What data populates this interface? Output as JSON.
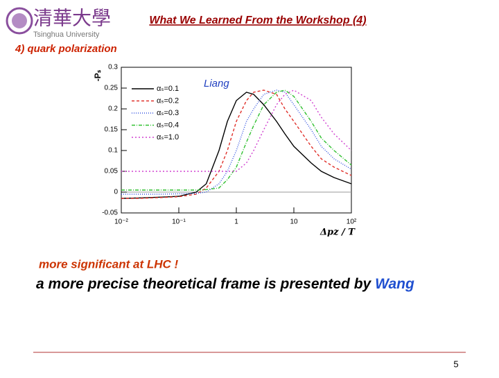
{
  "header": {
    "logo_text": "清華大學",
    "logo_subtext": "Tsinghua University",
    "title": "What We Learned From the Workshop (4)",
    "subtitle": "4) quark polarization"
  },
  "chart_data": {
    "type": "line",
    "annotation": "Liang",
    "y_label": "-Pₛ",
    "x_label": "Δpz / T",
    "x_scale": "log",
    "x": [
      0.01,
      0.02,
      0.05,
      0.1,
      0.2,
      0.3,
      0.5,
      0.7,
      1,
      1.5,
      2,
      3,
      5,
      7,
      10,
      20,
      30,
      50,
      100
    ],
    "series": [
      {
        "name": "αₛ=0.1",
        "color": "#000000",
        "dash": "none",
        "values": [
          -0.015,
          -0.014,
          -0.012,
          -0.01,
          0.0,
          0.02,
          0.1,
          0.17,
          0.22,
          0.24,
          0.235,
          0.21,
          0.17,
          0.14,
          0.11,
          0.07,
          0.05,
          0.035,
          0.02
        ]
      },
      {
        "name": "αₛ=0.2",
        "color": "#e0302a",
        "dash": "4,3",
        "values": [
          -0.015,
          -0.015,
          -0.013,
          -0.011,
          -0.005,
          0.01,
          0.05,
          0.1,
          0.17,
          0.22,
          0.24,
          0.245,
          0.235,
          0.2,
          0.17,
          0.11,
          0.08,
          0.06,
          0.04
        ]
      },
      {
        "name": "αₛ=0.3",
        "color": "#3050e0",
        "dash": "1,2",
        "values": [
          -0.005,
          -0.005,
          -0.005,
          -0.004,
          -0.003,
          0.0,
          0.02,
          0.05,
          0.1,
          0.17,
          0.2,
          0.235,
          0.245,
          0.24,
          0.21,
          0.15,
          0.11,
          0.08,
          0.055
        ]
      },
      {
        "name": "αₛ=0.4",
        "color": "#30c030",
        "dash": "5,2,1,2",
        "values": [
          0.005,
          0.005,
          0.005,
          0.005,
          0.005,
          0.006,
          0.01,
          0.03,
          0.06,
          0.12,
          0.16,
          0.21,
          0.24,
          0.245,
          0.23,
          0.17,
          0.13,
          0.1,
          0.065
        ]
      },
      {
        "name": "αₛ=1.0",
        "color": "#d040d0",
        "dash": "2,3",
        "values": [
          0.05,
          0.05,
          0.05,
          0.05,
          0.05,
          0.05,
          0.05,
          0.05,
          0.05,
          0.07,
          0.1,
          0.15,
          0.21,
          0.235,
          0.245,
          0.22,
          0.18,
          0.14,
          0.1
        ]
      }
    ],
    "xlim": [
      0.01,
      100
    ],
    "xticks": [
      {
        "value": 0.01,
        "label": "10⁻²"
      },
      {
        "value": 0.1,
        "label": "10⁻¹"
      },
      1,
      10,
      {
        "value": 100,
        "label": "10²"
      }
    ],
    "ylim": [
      -0.05,
      0.3
    ],
    "yticks": [
      -0.05,
      0,
      0.05,
      0.1,
      0.15,
      0.2,
      0.25,
      0.3
    ],
    "zero_line": true,
    "legend": "upper-left"
  },
  "body": {
    "line1": "more significant at LHC !",
    "line2": {
      "text": "a more precise theoretical frame is presented by",
      "highlight": "Wang"
    }
  },
  "footer": {
    "page": "5"
  }
}
